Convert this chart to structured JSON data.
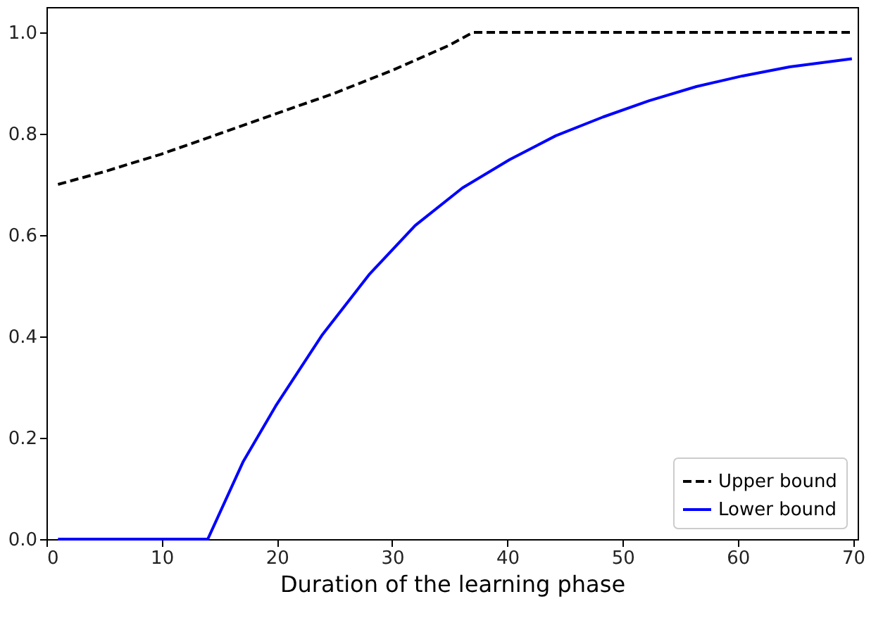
{
  "chart_data": {
    "type": "line",
    "xlabel": "Duration of the learning phase",
    "xlim": [
      0,
      70.4
    ],
    "ylim": [
      0,
      1.05
    ],
    "xticks": [
      0,
      10,
      20,
      30,
      40,
      50,
      60,
      70
    ],
    "yticks": [
      {
        "value": 0,
        "label": "0.0"
      },
      0.2,
      0.4,
      0.6,
      0.8,
      {
        "value": 1,
        "label": "1.0"
      }
    ],
    "grid": false,
    "legend": "bottom right",
    "marker": "none",
    "series": [
      {
        "name": "Upper bound",
        "color": "#000000",
        "line_style": "dashed",
        "x": [
          1,
          5,
          10,
          15,
          20,
          25,
          30,
          35,
          37,
          70
        ],
        "values": [
          0.7,
          0.725,
          0.76,
          0.8,
          0.84,
          0.88,
          0.925,
          0.975,
          1.0,
          1.0
        ]
      },
      {
        "name": "Lower bound",
        "color": "#0000ff",
        "line_style": "solid",
        "x": [
          1,
          14.0,
          17.05,
          19.9,
          23.9,
          28.0,
          32.0,
          36.1,
          40.2,
          44.2,
          48.3,
          52.3,
          56.4,
          60.4,
          64.5,
          69.9
        ],
        "values": [
          0,
          0,
          0.152,
          0.263,
          0.402,
          0.522,
          0.619,
          0.693,
          0.749,
          0.796,
          0.833,
          0.865,
          0.893,
          0.914,
          0.932,
          0.948
        ]
      }
    ]
  }
}
